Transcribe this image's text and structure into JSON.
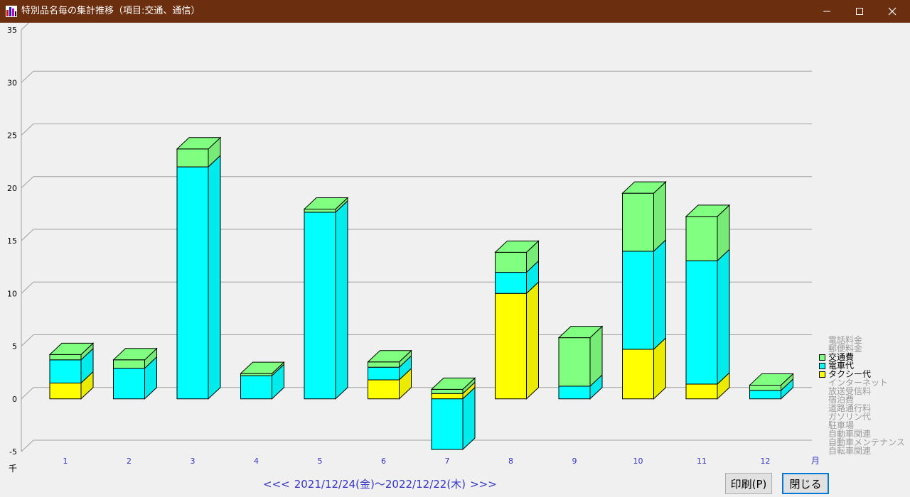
{
  "window": {
    "title": "特別品名毎の集計推移（項目:交通、通信）"
  },
  "colors": {
    "titlebar": "#6b2e0e",
    "grid": "#a0a0a0",
    "tick_label": "#3333cc"
  },
  "chart_data": {
    "type": "bar",
    "stacked": true,
    "unit_label": "千",
    "x_unit_label": "月",
    "categories": [
      "1",
      "2",
      "3",
      "4",
      "5",
      "6",
      "7",
      "8",
      "9",
      "10",
      "11",
      "12"
    ],
    "ylim": [
      -5,
      35
    ],
    "yticks": [
      -5,
      0,
      5,
      10,
      15,
      20,
      25,
      30,
      35
    ],
    "series": [
      {
        "name": "タクシー代",
        "color": "#ffff00",
        "values": [
          1.5,
          0,
          0,
          0,
          0,
          1.8,
          0.5,
          10.0,
          0,
          4.7,
          1.4,
          0
        ]
      },
      {
        "name": "電車代",
        "color": "#00ffff",
        "values": [
          2.2,
          2.9,
          22.0,
          2.2,
          17.7,
          1.2,
          -4.8,
          2.0,
          1.2,
          9.3,
          11.7,
          0.8
        ]
      },
      {
        "name": "交通費",
        "color": "#80ff80",
        "values": [
          0.5,
          0.8,
          1.7,
          0.2,
          0.3,
          0.5,
          0.4,
          1.9,
          4.6,
          5.5,
          4.2,
          0.5
        ]
      }
    ]
  },
  "legend": {
    "items": [
      {
        "label": "電話料金",
        "active": false,
        "color": ""
      },
      {
        "label": "郵便料金",
        "active": false,
        "color": ""
      },
      {
        "label": "交通費",
        "active": true,
        "color": "#80ff80"
      },
      {
        "label": "電車代",
        "active": true,
        "color": "#00ffff"
      },
      {
        "label": "タクシー代",
        "active": true,
        "color": "#ffff00"
      },
      {
        "label": "インターネット",
        "active": false,
        "color": ""
      },
      {
        "label": "放送受信料",
        "active": false,
        "color": ""
      },
      {
        "label": "宿泊費",
        "active": false,
        "color": ""
      },
      {
        "label": "道路通行料",
        "active": false,
        "color": ""
      },
      {
        "label": "ガソリン代",
        "active": false,
        "color": ""
      },
      {
        "label": "駐車場",
        "active": false,
        "color": ""
      },
      {
        "label": "自動車関連",
        "active": false,
        "color": ""
      },
      {
        "label": "自動車メンテナンス",
        "active": false,
        "color": ""
      },
      {
        "label": "自転車関連",
        "active": false,
        "color": ""
      }
    ]
  },
  "period": {
    "prev": "<<<",
    "range": "2021/12/24(金)～2022/12/22(木)",
    "next": ">>>"
  },
  "buttons": {
    "print": "印刷(P)",
    "close": "閉じる"
  }
}
